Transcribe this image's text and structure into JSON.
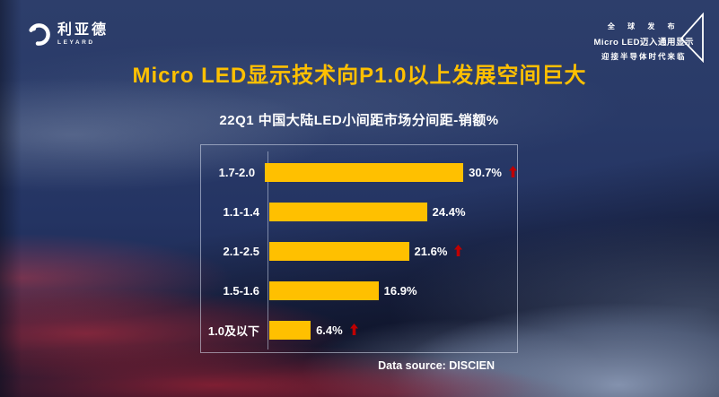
{
  "brand": {
    "name_cn": "利亚德",
    "name_en": "LEYARD"
  },
  "badge": {
    "line1": "全 球 发 布",
    "line2": "Micro LED迈入通用显示",
    "line3": "迎接半导体时代来临"
  },
  "title": {
    "text": "Micro LED显示技术向P1.0以上发展空间巨大",
    "color": "#FFC000"
  },
  "chart_data": {
    "type": "bar",
    "orientation": "horizontal",
    "title": "22Q1 中国大陆LED小间距市场分间距-销额%",
    "categories": [
      "1.7-2.0",
      "1.1-1.4",
      "2.1-2.5",
      "1.5-1.6",
      "1.0及以下"
    ],
    "values": [
      30.7,
      24.4,
      21.6,
      16.9,
      6.4
    ],
    "unit": "%",
    "xlim": [
      0,
      40
    ],
    "grid": false,
    "legend": false,
    "bar_color": "#FFC000",
    "arrow_color": "#C00000",
    "bars": [
      {
        "label": "1.7-2.0",
        "value": 30.7,
        "display": "30.7%",
        "arrow": true
      },
      {
        "label": "1.1-1.4",
        "value": 24.4,
        "display": "24.4%",
        "arrow": false
      },
      {
        "label": "2.1-2.5",
        "value": 21.6,
        "display": "21.6%",
        "arrow": true
      },
      {
        "label": "1.5-1.6",
        "value": 16.9,
        "display": "16.9%",
        "arrow": false
      },
      {
        "label": "1.0及以下",
        "value": 6.4,
        "display": "6.4%",
        "arrow": true
      }
    ],
    "source_note": "Data source: DISCIEN"
  }
}
